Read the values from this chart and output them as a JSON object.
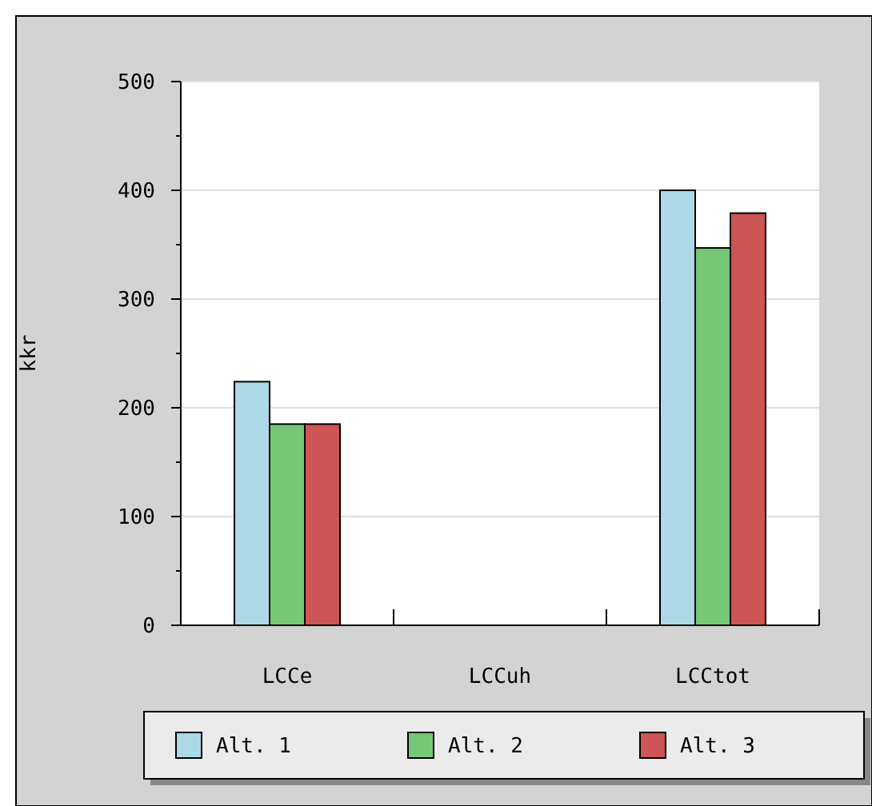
{
  "chart_data": {
    "type": "bar",
    "ylabel": "kkr",
    "categories": [
      "LCCe",
      "LCCuh",
      "LCCtot"
    ],
    "series": [
      {
        "name": "Alt. 1",
        "color": "#add8e6",
        "values": [
          224,
          0,
          400
        ]
      },
      {
        "name": "Alt. 2",
        "color": "#77c777",
        "values": [
          185,
          0,
          347
        ]
      },
      {
        "name": "Alt. 3",
        "color": "#cd5555",
        "values": [
          185,
          0,
          379
        ]
      }
    ],
    "ylim": [
      0,
      500
    ],
    "yticks": [
      0,
      100,
      200,
      300,
      400,
      500
    ],
    "grid": "y",
    "legend": "bottom"
  }
}
